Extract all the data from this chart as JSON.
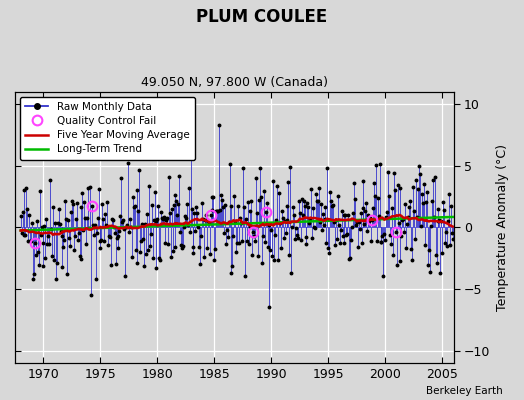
{
  "title": "PLUM COULEE",
  "subtitle": "49.050 N, 97.800 W (Canada)",
  "ylabel": "Temperature Anomaly (°C)",
  "credit": "Berkeley Earth",
  "xlim": [
    1967.5,
    2006.0
  ],
  "ylim": [
    -11,
    11
  ],
  "yticks": [
    -10,
    -5,
    0,
    5,
    10
  ],
  "xticks": [
    1970,
    1975,
    1980,
    1985,
    1990,
    1995,
    2000,
    2005
  ],
  "bg_color": "#d8d8d8",
  "plot_bg_color": "#d8d8d8",
  "line_color": "#3333cc",
  "ma_color": "#cc0000",
  "trend_color": "#00bb00",
  "qc_color": "#ff44ff",
  "seed": 42,
  "start_year": 1968,
  "end_year": 2005,
  "trend_slope": 0.022,
  "trend_intercept": -0.15,
  "noise_std": 2.1
}
